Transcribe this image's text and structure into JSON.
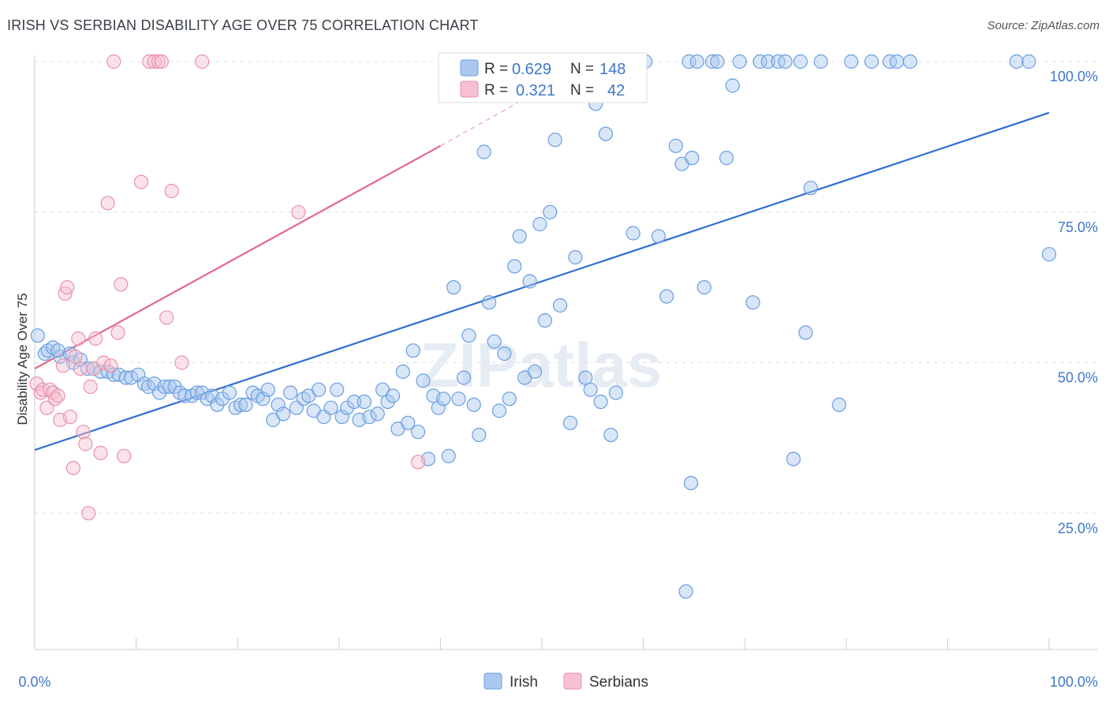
{
  "title": "IRISH VS SERBIAN DISABILITY AGE OVER 75 CORRELATION CHART",
  "source": "Source: ZipAtlas.com",
  "watermark": "ZIPatlas",
  "chart_data": {
    "type": "scatter",
    "title": "IRISH VS SERBIAN DISABILITY AGE OVER 75 CORRELATION CHART",
    "xlabel": "",
    "ylabel": "Disability Age Over 75",
    "xlim": [
      0,
      100
    ],
    "ylim": [
      0,
      105
    ],
    "x_tick_labels": [
      "0.0%",
      "100.0%"
    ],
    "y_ticks": [
      25,
      50,
      75,
      100
    ],
    "y_tick_labels": [
      "25.0%",
      "50.0%",
      "75.0%",
      "100.0%"
    ],
    "grid": true,
    "stats_box": [
      {
        "series": "Irish",
        "r_label": "R =",
        "r_value": "0.629",
        "n_label": "N =",
        "n_value": "148"
      },
      {
        "series": "Serbians",
        "r_label": "R =",
        "r_value": "0.321",
        "n_label": "N =",
        "n_value": "42"
      }
    ],
    "series": [
      {
        "name": "Irish",
        "color": "#6a9ee0",
        "fill": "#a9c8f0",
        "trend": {
          "x": [
            0,
            100
          ],
          "y": [
            35.5,
            91.5
          ]
        },
        "points": [
          [
            0.3,
            54.5
          ],
          [
            1.0,
            51.5
          ],
          [
            1.3,
            52
          ],
          [
            1.8,
            52.5
          ],
          [
            2.5,
            51
          ],
          [
            2.3,
            52
          ],
          [
            3.5,
            51.5
          ],
          [
            3.8,
            50
          ],
          [
            4.5,
            50.5
          ],
          [
            5.2,
            49
          ],
          [
            5.8,
            49
          ],
          [
            6.5,
            48.5
          ],
          [
            7.2,
            48.5
          ],
          [
            7.8,
            48
          ],
          [
            8.3,
            48
          ],
          [
            9.0,
            47.5
          ],
          [
            9.5,
            47.5
          ],
          [
            10.2,
            48
          ],
          [
            10.8,
            46.5
          ],
          [
            11.2,
            46
          ],
          [
            11.8,
            46.5
          ],
          [
            12.3,
            45
          ],
          [
            12.8,
            46
          ],
          [
            13.3,
            46
          ],
          [
            13.8,
            46
          ],
          [
            14.3,
            45
          ],
          [
            14.8,
            44.5
          ],
          [
            15.5,
            44.5
          ],
          [
            16.0,
            45
          ],
          [
            16.5,
            45
          ],
          [
            17.0,
            44
          ],
          [
            17.5,
            44.5
          ],
          [
            18.0,
            43
          ],
          [
            18.5,
            44
          ],
          [
            19.2,
            45
          ],
          [
            19.8,
            42.5
          ],
          [
            20.3,
            43
          ],
          [
            20.8,
            43
          ],
          [
            21.5,
            45
          ],
          [
            22.0,
            44.5
          ],
          [
            22.5,
            44
          ],
          [
            23.0,
            45.5
          ],
          [
            23.5,
            40.5
          ],
          [
            24.0,
            43
          ],
          [
            24.5,
            41.5
          ],
          [
            25.2,
            45
          ],
          [
            25.8,
            42.5
          ],
          [
            26.5,
            44
          ],
          [
            27.0,
            44.5
          ],
          [
            27.5,
            42
          ],
          [
            28.0,
            45.5
          ],
          [
            28.5,
            41
          ],
          [
            29.2,
            42.5
          ],
          [
            29.8,
            45.5
          ],
          [
            30.3,
            41
          ],
          [
            30.8,
            42.5
          ],
          [
            31.5,
            43.5
          ],
          [
            32.0,
            40.5
          ],
          [
            32.5,
            43.5
          ],
          [
            33.0,
            41
          ],
          [
            33.8,
            41.5
          ],
          [
            34.3,
            45.5
          ],
          [
            34.8,
            43.5
          ],
          [
            35.3,
            44.5
          ],
          [
            35.8,
            39
          ],
          [
            36.3,
            48.5
          ],
          [
            36.8,
            40
          ],
          [
            37.3,
            52
          ],
          [
            37.8,
            38.5
          ],
          [
            38.3,
            47
          ],
          [
            38.8,
            34
          ],
          [
            39.3,
            44.5
          ],
          [
            39.8,
            42.5
          ],
          [
            40.3,
            44
          ],
          [
            40.8,
            34.5
          ],
          [
            41.3,
            62.5
          ],
          [
            41.8,
            44
          ],
          [
            42.3,
            47.5
          ],
          [
            42.8,
            54.5
          ],
          [
            43.3,
            43
          ],
          [
            43.8,
            38
          ],
          [
            44.3,
            85
          ],
          [
            44.8,
            60
          ],
          [
            45.3,
            53.5
          ],
          [
            45.8,
            42
          ],
          [
            46.3,
            51.5
          ],
          [
            46.8,
            44
          ],
          [
            47.3,
            66
          ],
          [
            47.8,
            71
          ],
          [
            48.3,
            47.5
          ],
          [
            48.8,
            63.5
          ],
          [
            49.3,
            48.5
          ],
          [
            49.8,
            73
          ],
          [
            50.3,
            57
          ],
          [
            50.8,
            75
          ],
          [
            51.3,
            87
          ],
          [
            51.8,
            59.5
          ],
          [
            52.3,
            100
          ],
          [
            52.8,
            40
          ],
          [
            53.3,
            67.5
          ],
          [
            53.8,
            100
          ],
          [
            54.3,
            47.5
          ],
          [
            54.8,
            45.5
          ],
          [
            55.3,
            93
          ],
          [
            55.8,
            43.5
          ],
          [
            56.3,
            88
          ],
          [
            56.8,
            38
          ],
          [
            57.3,
            45
          ],
          [
            58.3,
            100
          ],
          [
            59.0,
            71.5
          ],
          [
            60.2,
            100
          ],
          [
            61.5,
            71
          ],
          [
            62.3,
            61
          ],
          [
            63.2,
            86
          ],
          [
            63.8,
            83
          ],
          [
            64.5,
            100
          ],
          [
            64.8,
            84
          ],
          [
            64.2,
            12
          ],
          [
            64.7,
            30
          ],
          [
            65.3,
            100
          ],
          [
            66.0,
            62.5
          ],
          [
            66.8,
            100
          ],
          [
            67.3,
            100
          ],
          [
            68.2,
            84
          ],
          [
            68.8,
            96
          ],
          [
            69.5,
            100
          ],
          [
            70.8,
            60
          ],
          [
            71.5,
            100
          ],
          [
            72.3,
            100
          ],
          [
            73.3,
            100
          ],
          [
            74.0,
            100
          ],
          [
            74.8,
            34
          ],
          [
            75.5,
            100
          ],
          [
            76.0,
            55
          ],
          [
            76.5,
            79
          ],
          [
            77.5,
            100
          ],
          [
            79.3,
            43
          ],
          [
            80.5,
            100
          ],
          [
            82.5,
            100
          ],
          [
            84.3,
            100
          ],
          [
            85.0,
            100
          ],
          [
            86.3,
            100
          ],
          [
            96.8,
            100
          ],
          [
            98.0,
            100
          ],
          [
            100.0,
            68
          ]
        ]
      },
      {
        "name": "Serbians",
        "color": "#e891aa",
        "fill": "#f6c0d0",
        "trend": {
          "x": [
            0,
            40
          ],
          "y": [
            49,
            86
          ]
        },
        "trend_dashed": {
          "x": [
            40,
            48
          ],
          "y": [
            86,
            93.5
          ]
        },
        "points": [
          [
            0.2,
            46.5
          ],
          [
            0.6,
            45
          ],
          [
            0.8,
            45.5
          ],
          [
            1.2,
            42.5
          ],
          [
            1.5,
            45.5
          ],
          [
            1.8,
            45
          ],
          [
            2.0,
            44
          ],
          [
            2.3,
            44.5
          ],
          [
            2.5,
            40.5
          ],
          [
            2.8,
            49.5
          ],
          [
            3.0,
            61.5
          ],
          [
            3.2,
            62.5
          ],
          [
            3.5,
            41
          ],
          [
            3.8,
            32.5
          ],
          [
            4.0,
            51
          ],
          [
            4.3,
            54
          ],
          [
            4.5,
            49
          ],
          [
            4.8,
            38.5
          ],
          [
            5.0,
            36.5
          ],
          [
            5.3,
            25
          ],
          [
            5.5,
            46
          ],
          [
            5.8,
            49
          ],
          [
            6.0,
            54
          ],
          [
            6.5,
            35
          ],
          [
            6.8,
            50
          ],
          [
            7.2,
            76.5
          ],
          [
            7.5,
            49.5
          ],
          [
            7.8,
            100
          ],
          [
            8.2,
            55
          ],
          [
            8.5,
            63
          ],
          [
            8.8,
            34.5
          ],
          [
            10.5,
            80
          ],
          [
            11.3,
            100
          ],
          [
            11.8,
            100
          ],
          [
            12.2,
            100
          ],
          [
            12.5,
            100
          ],
          [
            13.0,
            57.5
          ],
          [
            13.5,
            78.5
          ],
          [
            14.5,
            50
          ],
          [
            16.5,
            100
          ],
          [
            26.0,
            75
          ],
          [
            37.8,
            33.5
          ]
        ]
      }
    ],
    "legend": {
      "placement": "bottom-center",
      "entries": [
        "Irish",
        "Serbians"
      ]
    }
  }
}
